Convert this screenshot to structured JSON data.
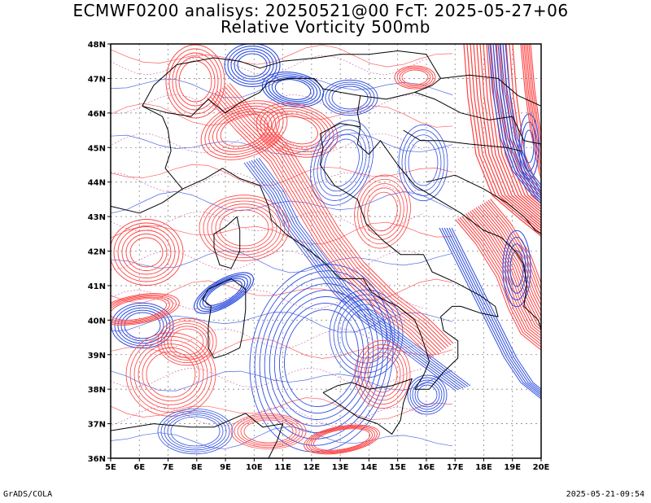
{
  "title": {
    "line1": "ECMWF0200 analisys: 20250521@00 FcT: 2025-05-27+06",
    "line2": "Relative Vorticity 500mb"
  },
  "axes": {
    "lon_labels": [
      "5E",
      "6E",
      "7E",
      "8E",
      "9E",
      "10E",
      "11E",
      "12E",
      "13E",
      "14E",
      "15E",
      "16E",
      "17E",
      "18E",
      "19E",
      "20E"
    ],
    "lat_labels": [
      "48N",
      "47N",
      "46N",
      "45N",
      "44N",
      "43N",
      "42N",
      "41N",
      "40N",
      "39N",
      "38N",
      "37N",
      "36N"
    ],
    "lon_range": [
      5,
      20
    ],
    "lat_range": [
      36,
      48
    ]
  },
  "colors": {
    "positive": "#ff4040",
    "negative": "#3050e0",
    "zero": "#c060a0",
    "grid": "#888888",
    "coast": "#000000"
  },
  "footer": {
    "left": "GrADS/COLA",
    "right": "2025-05-21-09:54"
  }
}
